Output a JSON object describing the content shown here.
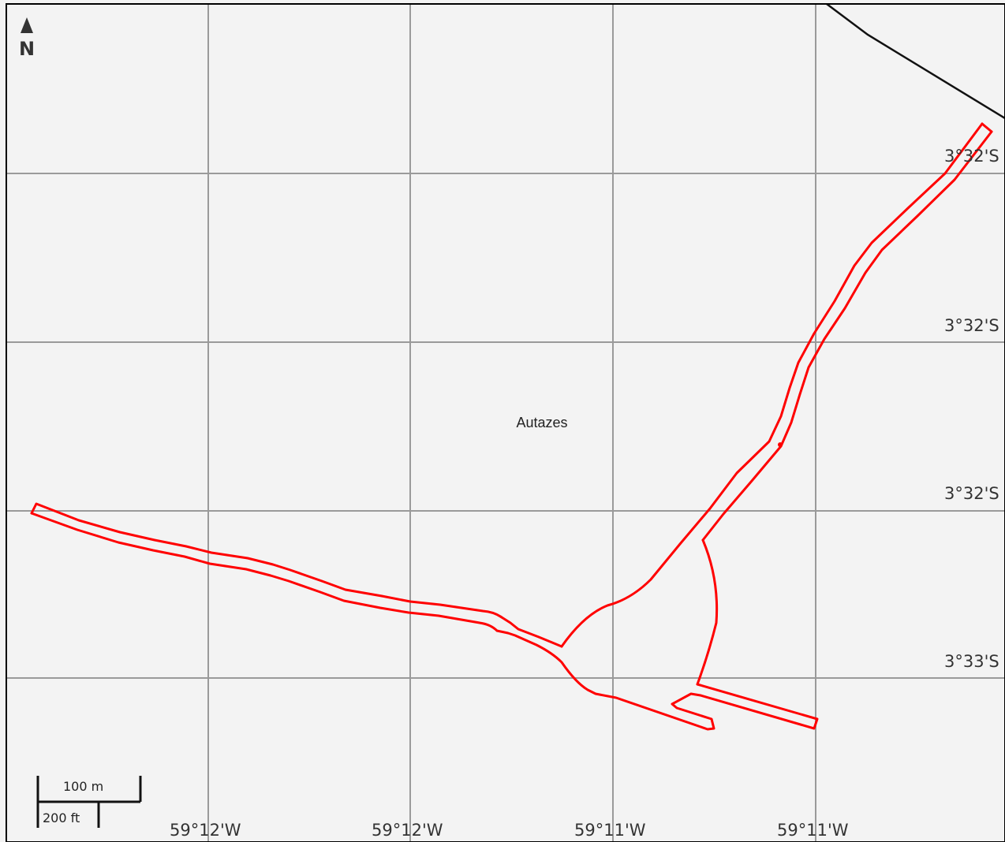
{
  "map": {
    "place_name": "Autazes",
    "north_letter": "N",
    "latitude_labels": [
      "3°32'S",
      "3°32'S",
      "3°32'S",
      "3°33'S"
    ],
    "longitude_labels": [
      "59°12'W",
      "59°12'W",
      "59°11'W",
      "59°11'W"
    ],
    "scale_bar": {
      "metric_label": "100 m",
      "imperial_label": "200 ft"
    },
    "colors": {
      "background": "#f3f3f3",
      "grid": "#9a9a9a",
      "road_outline": "#ff0000",
      "boundary": "#111111",
      "frame": "#000000"
    },
    "icons": [
      "north-arrow-icon"
    ]
  }
}
